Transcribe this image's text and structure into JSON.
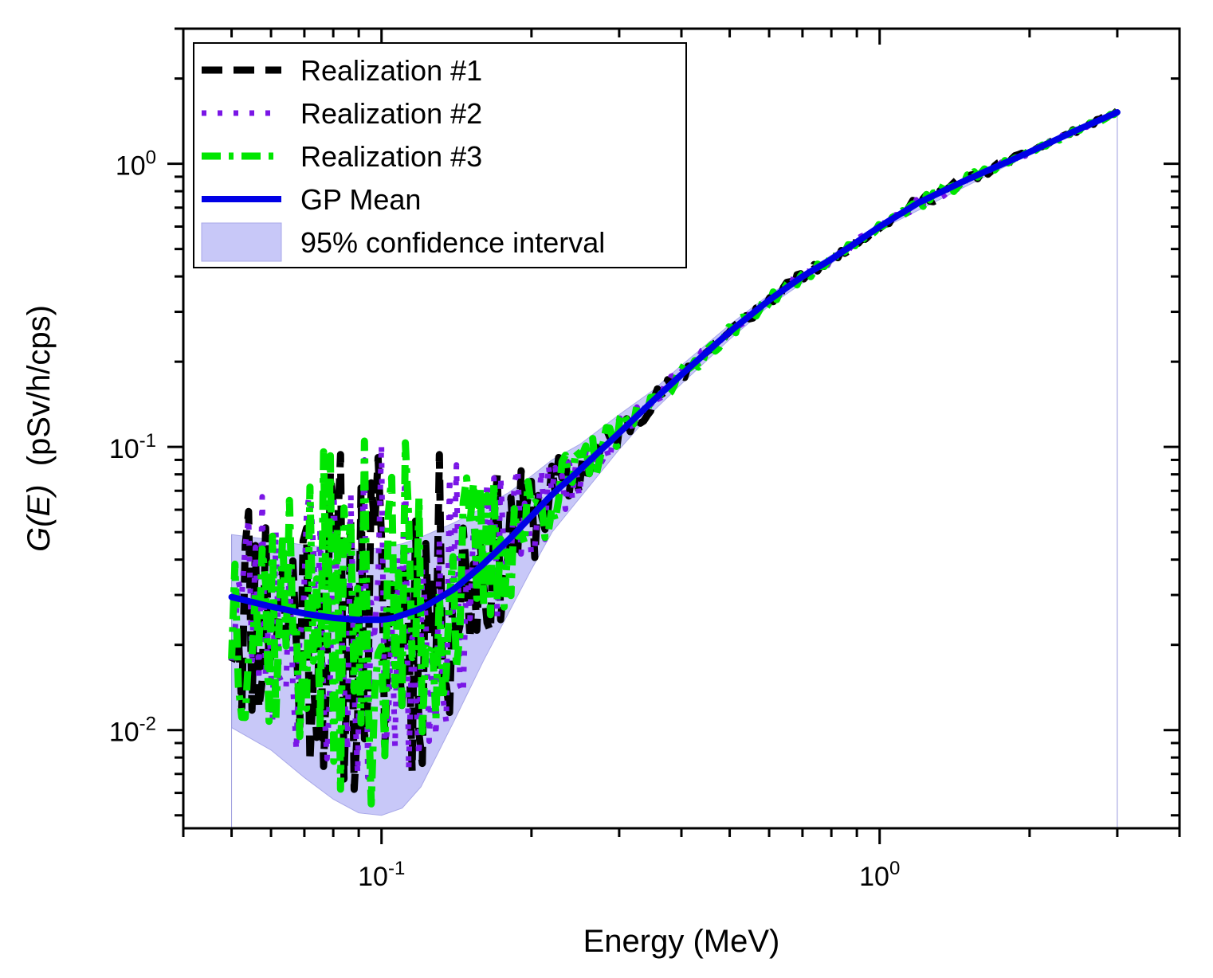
{
  "chart_data": {
    "type": "line",
    "title": "",
    "xlabel": "Energy (MeV)",
    "ylabel": {
      "italic": "G(E)",
      "unit": "(pSv/h/cps)"
    },
    "xscale": "log",
    "yscale": "log",
    "xlim": [
      0.04,
      4.0
    ],
    "ylim": [
      0.0045,
      3.0
    ],
    "x_ticks": [
      {
        "value": 0.1,
        "base": "10",
        "exp": "-1"
      },
      {
        "value": 1.0,
        "base": "10",
        "exp": "0"
      }
    ],
    "y_ticks": [
      {
        "value": 0.01,
        "base": "10",
        "exp": "-2"
      },
      {
        "value": 0.1,
        "base": "10",
        "exp": "-1"
      },
      {
        "value": 1.0,
        "base": "10",
        "exp": "0"
      }
    ],
    "legend_position": "top-left",
    "series": [
      {
        "name": "Realization #1",
        "color": "#000000",
        "style": "dash",
        "seed": 11
      },
      {
        "name": "Realization #2",
        "color": "#7a16e6",
        "style": "dot",
        "seed": 23
      },
      {
        "name": "Realization #3",
        "color": "#00e600",
        "style": "dashdot",
        "seed": 37
      },
      {
        "name": "GP Mean",
        "color": "#0000e6",
        "style": "solid",
        "x": [
          0.05,
          0.06,
          0.07,
          0.08,
          0.09,
          0.1,
          0.105,
          0.12,
          0.14,
          0.16,
          0.18,
          0.2,
          0.22,
          0.25,
          0.28,
          0.3,
          0.35,
          0.4,
          0.5,
          0.6,
          0.7,
          0.8,
          1.0,
          1.2,
          1.5,
          2.0,
          2.5,
          3.0
        ],
        "y": [
          0.0295,
          0.0273,
          0.0258,
          0.0249,
          0.0245,
          0.0245,
          0.0248,
          0.0268,
          0.0315,
          0.0385,
          0.047,
          0.057,
          0.068,
          0.083,
          0.1,
          0.112,
          0.145,
          0.18,
          0.255,
          0.33,
          0.4,
          0.46,
          0.6,
          0.73,
          0.88,
          1.1,
          1.32,
          1.52
        ]
      },
      {
        "name": "95% confidence interval",
        "color": "#9999ff",
        "style": "fill",
        "x": [
          0.05,
          0.06,
          0.07,
          0.08,
          0.09,
          0.1,
          0.11,
          0.12,
          0.14,
          0.16,
          0.18,
          0.2,
          0.22,
          0.25,
          0.3,
          0.35,
          0.4,
          0.5,
          0.6,
          0.8,
          1.0,
          2.0,
          3.0
        ],
        "lower": [
          0.0102,
          0.0085,
          0.0068,
          0.0057,
          0.0051,
          0.005,
          0.0053,
          0.0063,
          0.0108,
          0.0175,
          0.026,
          0.037,
          0.05,
          0.066,
          0.098,
          0.133,
          0.167,
          0.24,
          0.315,
          0.445,
          0.585,
          1.08,
          1.5
        ],
        "upper": [
          0.049,
          0.047,
          0.045,
          0.044,
          0.0435,
          0.044,
          0.0455,
          0.048,
          0.054,
          0.061,
          0.069,
          0.079,
          0.09,
          0.102,
          0.13,
          0.158,
          0.194,
          0.27,
          0.345,
          0.475,
          0.615,
          1.12,
          1.54
        ]
      }
    ]
  }
}
